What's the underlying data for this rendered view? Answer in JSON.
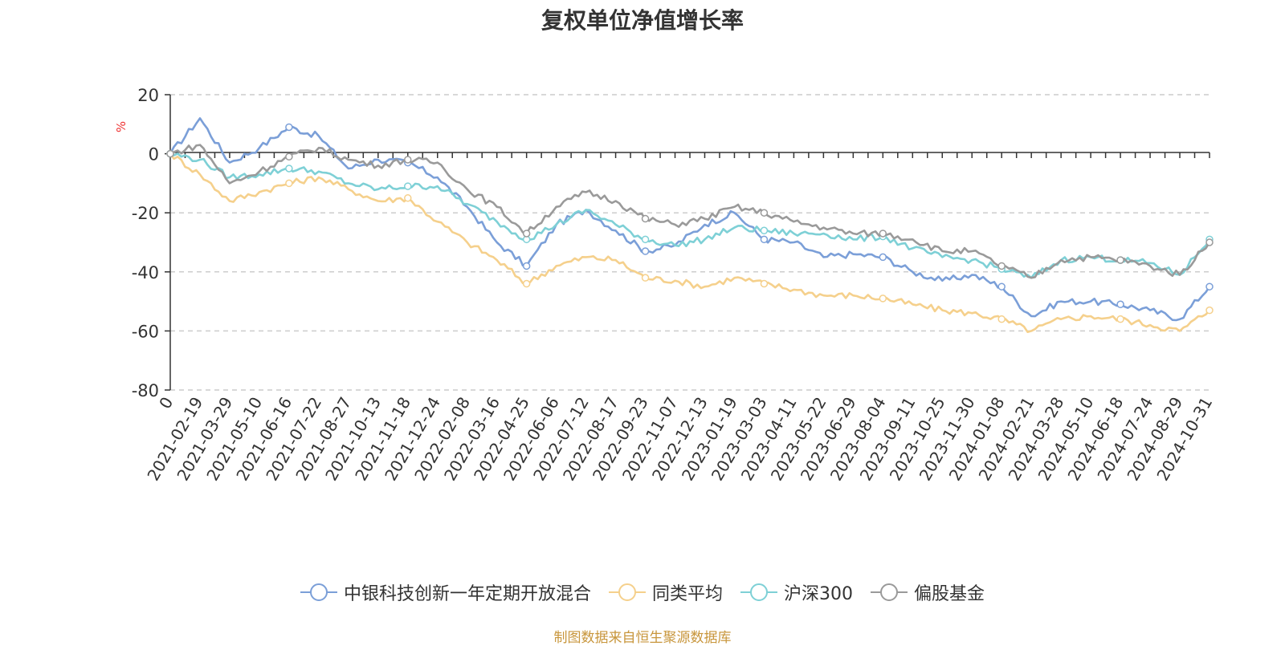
{
  "chart_data": {
    "type": "line",
    "title": "复权单位净值增长率",
    "ylabel": "%",
    "xlabel": "",
    "ylim": [
      -80,
      20
    ],
    "yticks": [
      20,
      0,
      -20,
      -40,
      -60,
      -80
    ],
    "grid": true,
    "legend_position": "bottom",
    "x": [
      "0",
      "2021-02-19",
      "2021-03-29",
      "2021-05-10",
      "2021-06-16",
      "2021-07-22",
      "2021-08-27",
      "2021-10-13",
      "2021-11-18",
      "2021-12-24",
      "2022-02-08",
      "2022-03-16",
      "2022-04-25",
      "2022-06-06",
      "2022-07-12",
      "2022-08-17",
      "2022-09-23",
      "2022-11-07",
      "2022-12-13",
      "2023-01-19",
      "2023-03-03",
      "2023-04-11",
      "2023-05-22",
      "2023-06-29",
      "2023-08-04",
      "2023-09-11",
      "2023-10-25",
      "2023-11-30",
      "2024-01-08",
      "2024-02-21",
      "2024-03-28",
      "2024-05-10",
      "2024-06-18",
      "2024-07-24",
      "2024-08-29",
      "2024-10-31"
    ],
    "series": [
      {
        "name": "中银科技创新一年定期开放混合",
        "color": "#7b9fd8",
        "values": [
          0,
          12,
          -3,
          2,
          9,
          6,
          -5,
          -2,
          -3,
          -8,
          -18,
          -30,
          -38,
          -24,
          -19,
          -26,
          -33,
          -31,
          -24,
          -20,
          -29,
          -30,
          -35,
          -34,
          -35,
          -40,
          -43,
          -41,
          -45,
          -55,
          -50,
          -50,
          -51,
          -53,
          -56,
          -45
        ]
      },
      {
        "name": "同类平均",
        "color": "#f5d08c",
        "values": [
          0,
          -7,
          -16,
          -13,
          -10,
          -8,
          -12,
          -16,
          -15,
          -23,
          -30,
          -36,
          -44,
          -38,
          -35,
          -36,
          -42,
          -43,
          -45,
          -42,
          -44,
          -46,
          -48,
          -48,
          -49,
          -51,
          -53,
          -54,
          -56,
          -60,
          -56,
          -55,
          -56,
          -58,
          -60,
          -53
        ]
      },
      {
        "name": "沪深300",
        "color": "#7ed0d6",
        "values": [
          0,
          -2,
          -8,
          -7,
          -5,
          -6,
          -10,
          -12,
          -11,
          -11,
          -17,
          -23,
          -29,
          -24,
          -19,
          -24,
          -29,
          -31,
          -29,
          -25,
          -26,
          -27,
          -27,
          -29,
          -28,
          -32,
          -35,
          -36,
          -39,
          -42,
          -36,
          -35,
          -36,
          -37,
          -41,
          -29
        ]
      },
      {
        "name": "偏股基金",
        "color": "#9a9a9a",
        "values": [
          0,
          3,
          -10,
          -6,
          -1,
          2,
          -2,
          -4,
          -2,
          -3,
          -12,
          -18,
          -27,
          -18,
          -13,
          -16,
          -22,
          -24,
          -22,
          -18,
          -20,
          -23,
          -25,
          -27,
          -27,
          -29,
          -33,
          -33,
          -38,
          -42,
          -36,
          -35,
          -36,
          -38,
          -41,
          -30
        ]
      }
    ]
  },
  "source_text": "制图数据来自恒生聚源数据库"
}
